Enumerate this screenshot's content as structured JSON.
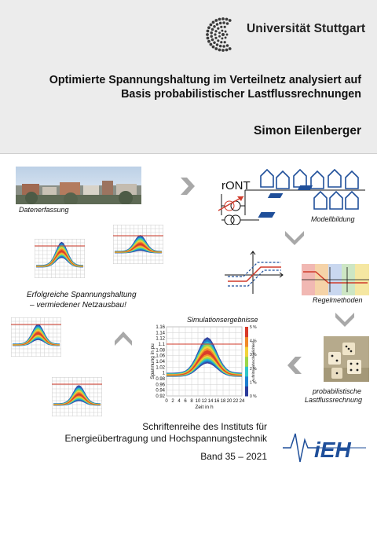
{
  "header": {
    "university": "Universität Stuttgart",
    "title_line1": "Optimierte Spannungshaltung im Verteilnetz analysiert auf",
    "title_line2": "Basis probabilistischer Lastflussrechnungen",
    "author": "Simon Eilenberger"
  },
  "diagram": {
    "caption_data": "Datenerfassung",
    "caption_model": "Modellbildung",
    "caption_regel": "Regelmethoden",
    "caption_prob_line1": "probabilistische",
    "caption_prob_line2": "Lastflussrechnung",
    "caption_sim": "Simulationsergebnisse",
    "caption_result_line1": "Erfolgreiche Spannungshaltung",
    "caption_result_line2": "– vermiedener Netzausbau!",
    "ront_label": "rONT"
  },
  "chart_data": {
    "type": "heatmap",
    "title": "Simulationsergebnisse",
    "xlabel": "Zeit in h",
    "ylabel": "Spannung in pu",
    "colorbar_label": "Auftrittswahrscheinlichkeit",
    "x_ticks": [
      "0",
      "2",
      "4",
      "6",
      "8",
      "10",
      "12",
      "14",
      "16",
      "18",
      "20",
      "22",
      "24"
    ],
    "y_ticks": [
      "1.16",
      "1.14",
      "1.12",
      "1.1",
      "1.08",
      "1.06",
      "1.04",
      "1.02",
      "1",
      "0.98",
      "0.96",
      "0.94",
      "0.92"
    ],
    "colorbar_ticks": [
      "5 %",
      "4 %",
      "3 %",
      "2 %",
      "1 %",
      "0 %"
    ],
    "xlim": [
      0,
      24
    ],
    "ylim": [
      0.92,
      1.16
    ],
    "limit_line": 1.1,
    "grid": true
  },
  "footer": {
    "series_line1": "Schriftenreihe des Instituts für",
    "series_line2": "Energieübertragung und Hochspannungstechnik",
    "logo_text": "iEH",
    "band": "Band 35 – 2021"
  },
  "colors": {
    "header_bg": "#ececec",
    "logo_blue": "#1f4f9a",
    "limit_red": "#d03a2a",
    "chevron_gray": "#a8a8a8"
  }
}
